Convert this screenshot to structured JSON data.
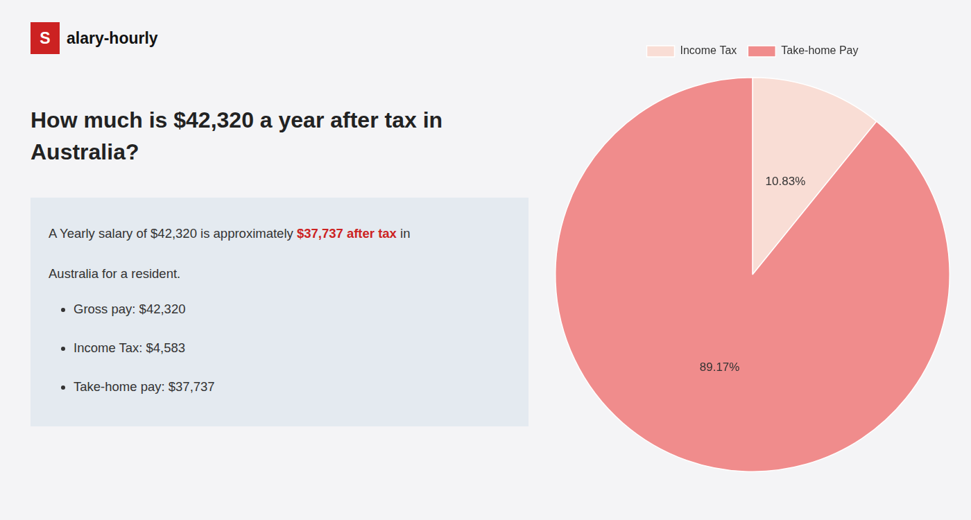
{
  "chart_data": {
    "type": "pie",
    "title": "How much is $42,320 a year after tax in\nAustralia?",
    "categories": [
      "Income Tax",
      "Take-home Pay"
    ],
    "values": [
      10.83,
      89.17
    ],
    "value_labels": [
      "10.83%",
      "89.17%"
    ],
    "colors": [
      "#f9ddd5",
      "#f08c8c"
    ],
    "data_labels": true,
    "legend": "top",
    "annotations": {
      "logo": [
        {
          "text": "S",
          "color": "#cc2222"
        },
        {
          "text": "alary-hourly",
          "color": "#111111"
        }
      ],
      "box": [
        [
          {
            "text": "A Yearly salary of $42,320 is approximately ",
            "color": "#333333"
          },
          {
            "text": "$37,737 after tax",
            "color": "#cc2222"
          },
          {
            "text": " in",
            "color": "#333333"
          }
        ],
        [
          {
            "text": "Australia for a resident.",
            "color": "#333333"
          }
        ]
      ],
      "bullets": [
        "Gross pay: $42,320",
        "Income Tax: $4,583",
        "Take-home pay: $37,737"
      ]
    }
  }
}
